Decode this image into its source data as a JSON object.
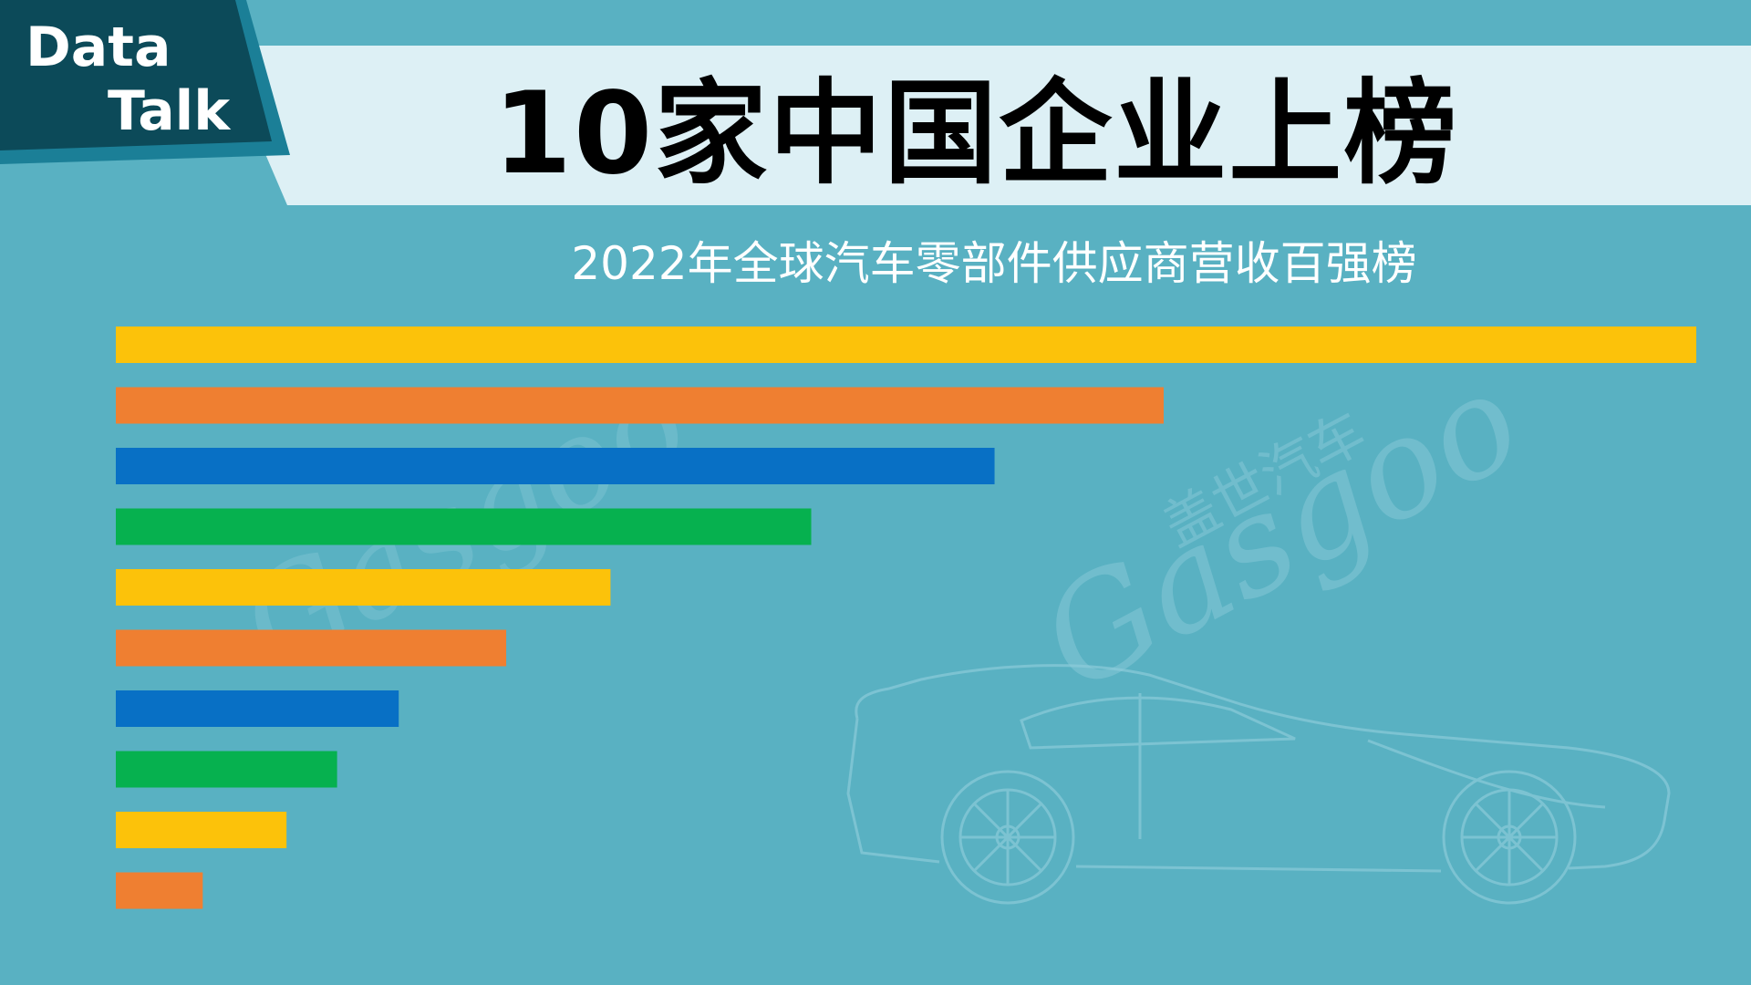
{
  "logo": {
    "line1": "Data",
    "line2": "Talk"
  },
  "title": "10家中国企业上榜",
  "subtitle": "2022年全球汽车零部件供应商营收百强榜",
  "watermark": {
    "brand": "Gasgoo",
    "brand_cn": "盖世汽车"
  },
  "colors": {
    "background": "#59b1c2",
    "title_band": "#ddf0f5",
    "logo_dark": "#0c4a59",
    "logo_mid": "#1b7f97",
    "bar_yellow": "#fcc20a",
    "bar_orange": "#ef7f31",
    "bar_blue": "#0870c5",
    "bar_green": "#06b14f"
  },
  "chart_data": {
    "type": "bar",
    "orientation": "horizontal",
    "values": [
      100,
      66.3,
      55.6,
      44.0,
      31.3,
      24.7,
      17.9,
      14.0,
      10.8,
      5.5
    ],
    "bar_colors": [
      "#fcc20a",
      "#ef7f31",
      "#0870c5",
      "#06b14f",
      "#fcc20a",
      "#ef7f31",
      "#0870c5",
      "#06b14f",
      "#fcc20a",
      "#ef7f31"
    ],
    "xlim": [
      0,
      100
    ],
    "grid": false,
    "legend": "none"
  }
}
